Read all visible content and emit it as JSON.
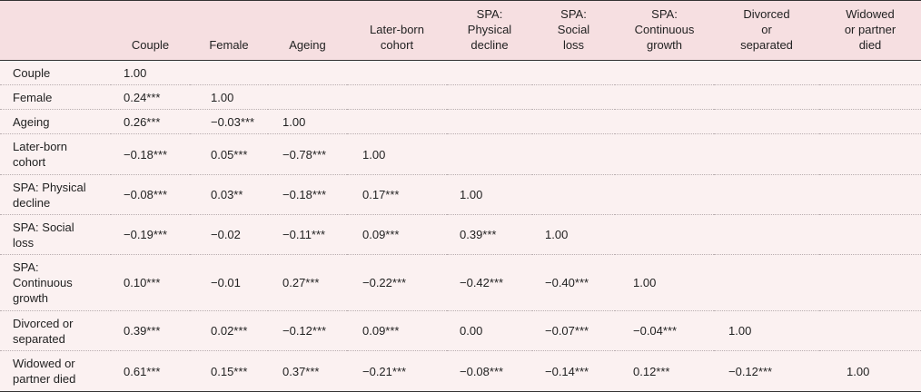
{
  "table": {
    "columns": [
      "Couple",
      "Female",
      "Ageing",
      "Later-born\ncohort",
      "SPA:\nPhysical\ndecline",
      "SPA:\nSocial\nloss",
      "SPA:\nContinuous\ngrowth",
      "Divorced\nor\nseparated",
      "Widowed\nor partner\ndied"
    ],
    "rows": [
      {
        "label": "Couple",
        "values": [
          "1.00",
          "",
          "",
          "",
          "",
          "",
          "",
          "",
          ""
        ]
      },
      {
        "label": "Female",
        "values": [
          "0.24***",
          "1.00",
          "",
          "",
          "",
          "",
          "",
          "",
          ""
        ]
      },
      {
        "label": "Ageing",
        "values": [
          "0.26***",
          "−0.03***",
          "1.00",
          "",
          "",
          "",
          "",
          "",
          ""
        ]
      },
      {
        "label": "Later-born\ncohort",
        "values": [
          "−0.18***",
          "0.05***",
          "−0.78***",
          "1.00",
          "",
          "",
          "",
          "",
          ""
        ]
      },
      {
        "label": "SPA: Physical\ndecline",
        "values": [
          "−0.08***",
          "0.03**",
          "−0.18***",
          "0.17***",
          "1.00",
          "",
          "",
          "",
          ""
        ]
      },
      {
        "label": "SPA: Social\nloss",
        "values": [
          "−0.19***",
          "−0.02",
          "−0.11***",
          "0.09***",
          "0.39***",
          "1.00",
          "",
          "",
          ""
        ]
      },
      {
        "label": "SPA:\nContinuous\ngrowth",
        "values": [
          "0.10***",
          "−0.01",
          "0.27***",
          "−0.22***",
          "−0.42***",
          "−0.40***",
          "1.00",
          "",
          ""
        ]
      },
      {
        "label": "Divorced or\nseparated",
        "values": [
          "0.39***",
          "0.02***",
          "−0.12***",
          "0.09***",
          "0.00",
          "−0.07***",
          "−0.04***",
          "1.00",
          ""
        ]
      },
      {
        "label": "Widowed or\npartner died",
        "values": [
          "0.61***",
          "0.15***",
          "0.37***",
          "−0.21***",
          "−0.08***",
          "−0.14***",
          "0.12***",
          "−0.12***",
          "1.00"
        ]
      }
    ]
  }
}
